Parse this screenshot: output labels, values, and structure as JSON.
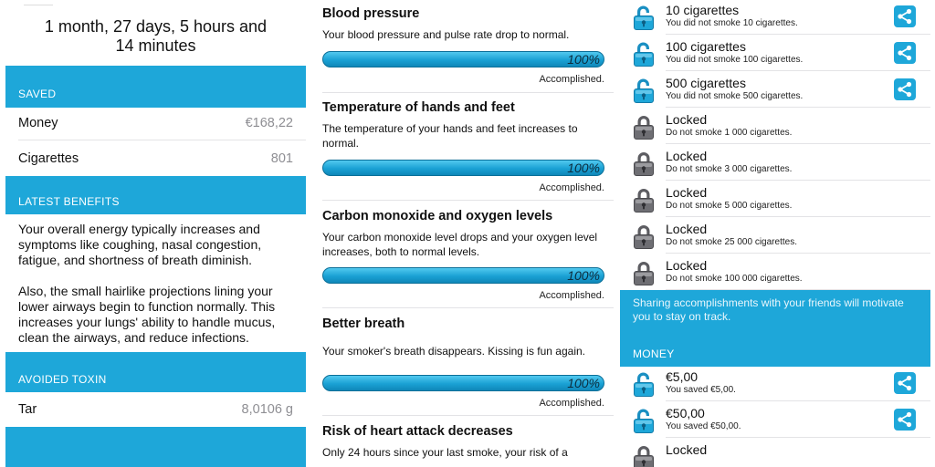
{
  "panel1": {
    "timer": "1 month, 27 days, 5 hours and 14 minutes",
    "saved_header": "SAVED",
    "saved_rows": [
      {
        "label": "Money",
        "value": "€168,22"
      },
      {
        "label": "Cigarettes",
        "value": "801"
      }
    ],
    "benefits_header": "LATEST BENEFITS",
    "benefits": [
      "Your overall energy typically increases and symptoms like coughing, nasal congestion, fatigue, and shortness of breath diminish.",
      "Also, the small hairlike projections lining your lower airways begin to function normally. This increases your lungs' ability to handle mucus, clean the airways, and reduce infections."
    ],
    "toxin_header": "AVOIDED TOXIN",
    "toxin_row": {
      "label": "Tar",
      "value": "8,0106 g"
    }
  },
  "panel2": {
    "items": [
      {
        "title": "Blood pressure",
        "desc": "Your blood pressure and pulse rate drop to normal.",
        "progress": 100,
        "percent_label": "100%",
        "status": "Accomplished."
      },
      {
        "title": "Temperature of hands and feet",
        "desc": "The temperature of your hands and feet increases to normal.",
        "progress": 100,
        "percent_label": "100%",
        "status": "Accomplished."
      },
      {
        "title": "Carbon monoxide and oxygen levels",
        "desc": "Your carbon monoxide level drops and your oxygen level increases, both to normal levels.",
        "progress": 100,
        "percent_label": "100%",
        "status": "Accomplished."
      },
      {
        "title": "Better breath",
        "desc": "Your smoker's breath disappears. Kissing is fun again.",
        "progress": 100,
        "percent_label": "100%",
        "status": "Accomplished."
      },
      {
        "title": "Risk of heart attack decreases",
        "desc": "Only 24 hours since your last smoke, your risk of a"
      }
    ]
  },
  "panel3": {
    "achievements": [
      {
        "title": "10 cigarettes",
        "sub": "You did not smoke 10 cigarettes.",
        "unlocked": true
      },
      {
        "title": "100 cigarettes",
        "sub": "You did not smoke 100 cigarettes.",
        "unlocked": true
      },
      {
        "title": "500 cigarettes",
        "sub": "You did not smoke 500 cigarettes.",
        "unlocked": true
      },
      {
        "title": "Locked",
        "sub": "Do not smoke 1 000 cigarettes.",
        "unlocked": false
      },
      {
        "title": "Locked",
        "sub": "Do not smoke 3 000 cigarettes.",
        "unlocked": false
      },
      {
        "title": "Locked",
        "sub": "Do not smoke 5 000 cigarettes.",
        "unlocked": false
      },
      {
        "title": "Locked",
        "sub": "Do not smoke 25 000 cigarettes.",
        "unlocked": false
      },
      {
        "title": "Locked",
        "sub": "Do not smoke 100 000 cigarettes.",
        "unlocked": false
      }
    ],
    "share_note": "Sharing accomplishments with your friends will motivate you to stay on track.",
    "money_header": "MONEY",
    "money_achievements": [
      {
        "title": "€5,00",
        "sub": "You saved €5,00.",
        "unlocked": true
      },
      {
        "title": "€50,00",
        "sub": "You saved €50,00.",
        "unlocked": true
      },
      {
        "title": "Locked",
        "sub": "",
        "unlocked": false
      }
    ]
  },
  "colors": {
    "accent": "#1ea7d9",
    "locked_icon": "#6e6e73",
    "progress_border": "#0b6f98"
  },
  "icons": {
    "unlocked": "unlocked-padlock-icon",
    "locked": "locked-padlock-icon",
    "share": "share-icon"
  }
}
